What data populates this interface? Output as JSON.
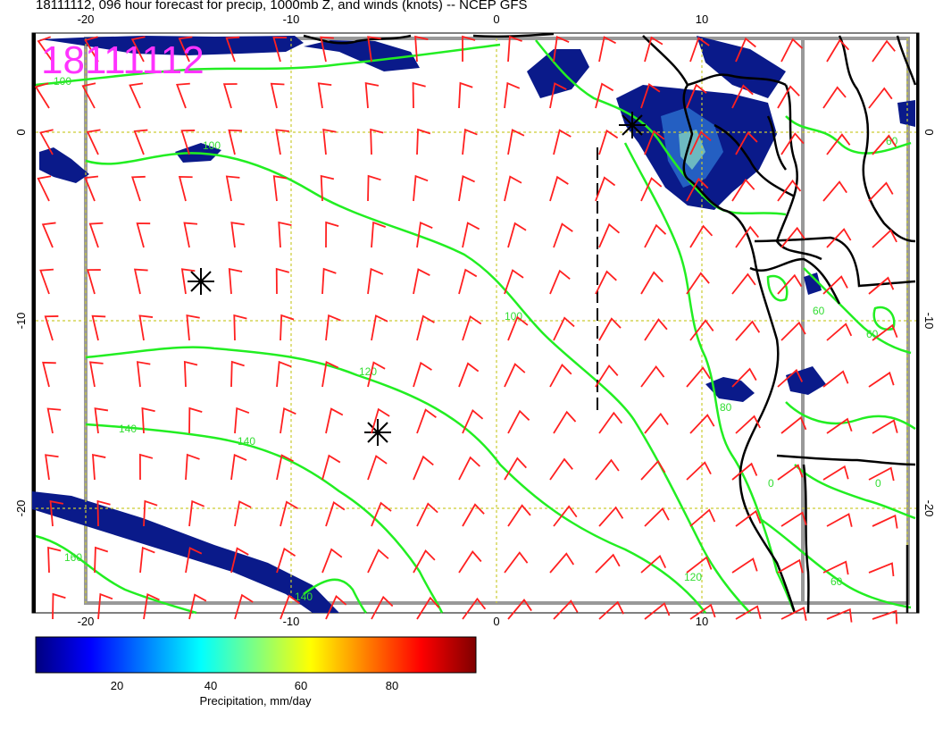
{
  "title": "18111112, 096 hour forecast for precip, 1000mb Z, and winds (knots) -- NCEP GFS",
  "stamp": "18111112",
  "axes": {
    "x_ticks": [
      "-20",
      "-10",
      "0",
      "10"
    ],
    "y_ticks": [
      "0",
      "-10",
      "-20"
    ]
  },
  "contour_labels": [
    "100",
    "100",
    "120",
    "140",
    "140",
    "160",
    "140",
    "120",
    "100",
    "80",
    "60",
    "60",
    "60",
    "0",
    "0",
    "60"
  ],
  "colorbar": {
    "ticks": [
      "20",
      "40",
      "60",
      "80"
    ],
    "label": "Precipitation, mm/day",
    "colors": [
      "#00007f",
      "#0000ff",
      "#0080ff",
      "#00ffff",
      "#80ff80",
      "#ffff00",
      "#ff8000",
      "#ff0000",
      "#7f0000"
    ]
  },
  "colors": {
    "contour": "#22ee22",
    "barb": "#ff2020",
    "coast": "#000000",
    "stamp": "#ff33ff",
    "grid": "#cccc33",
    "precip": "#0a1a8a"
  }
}
